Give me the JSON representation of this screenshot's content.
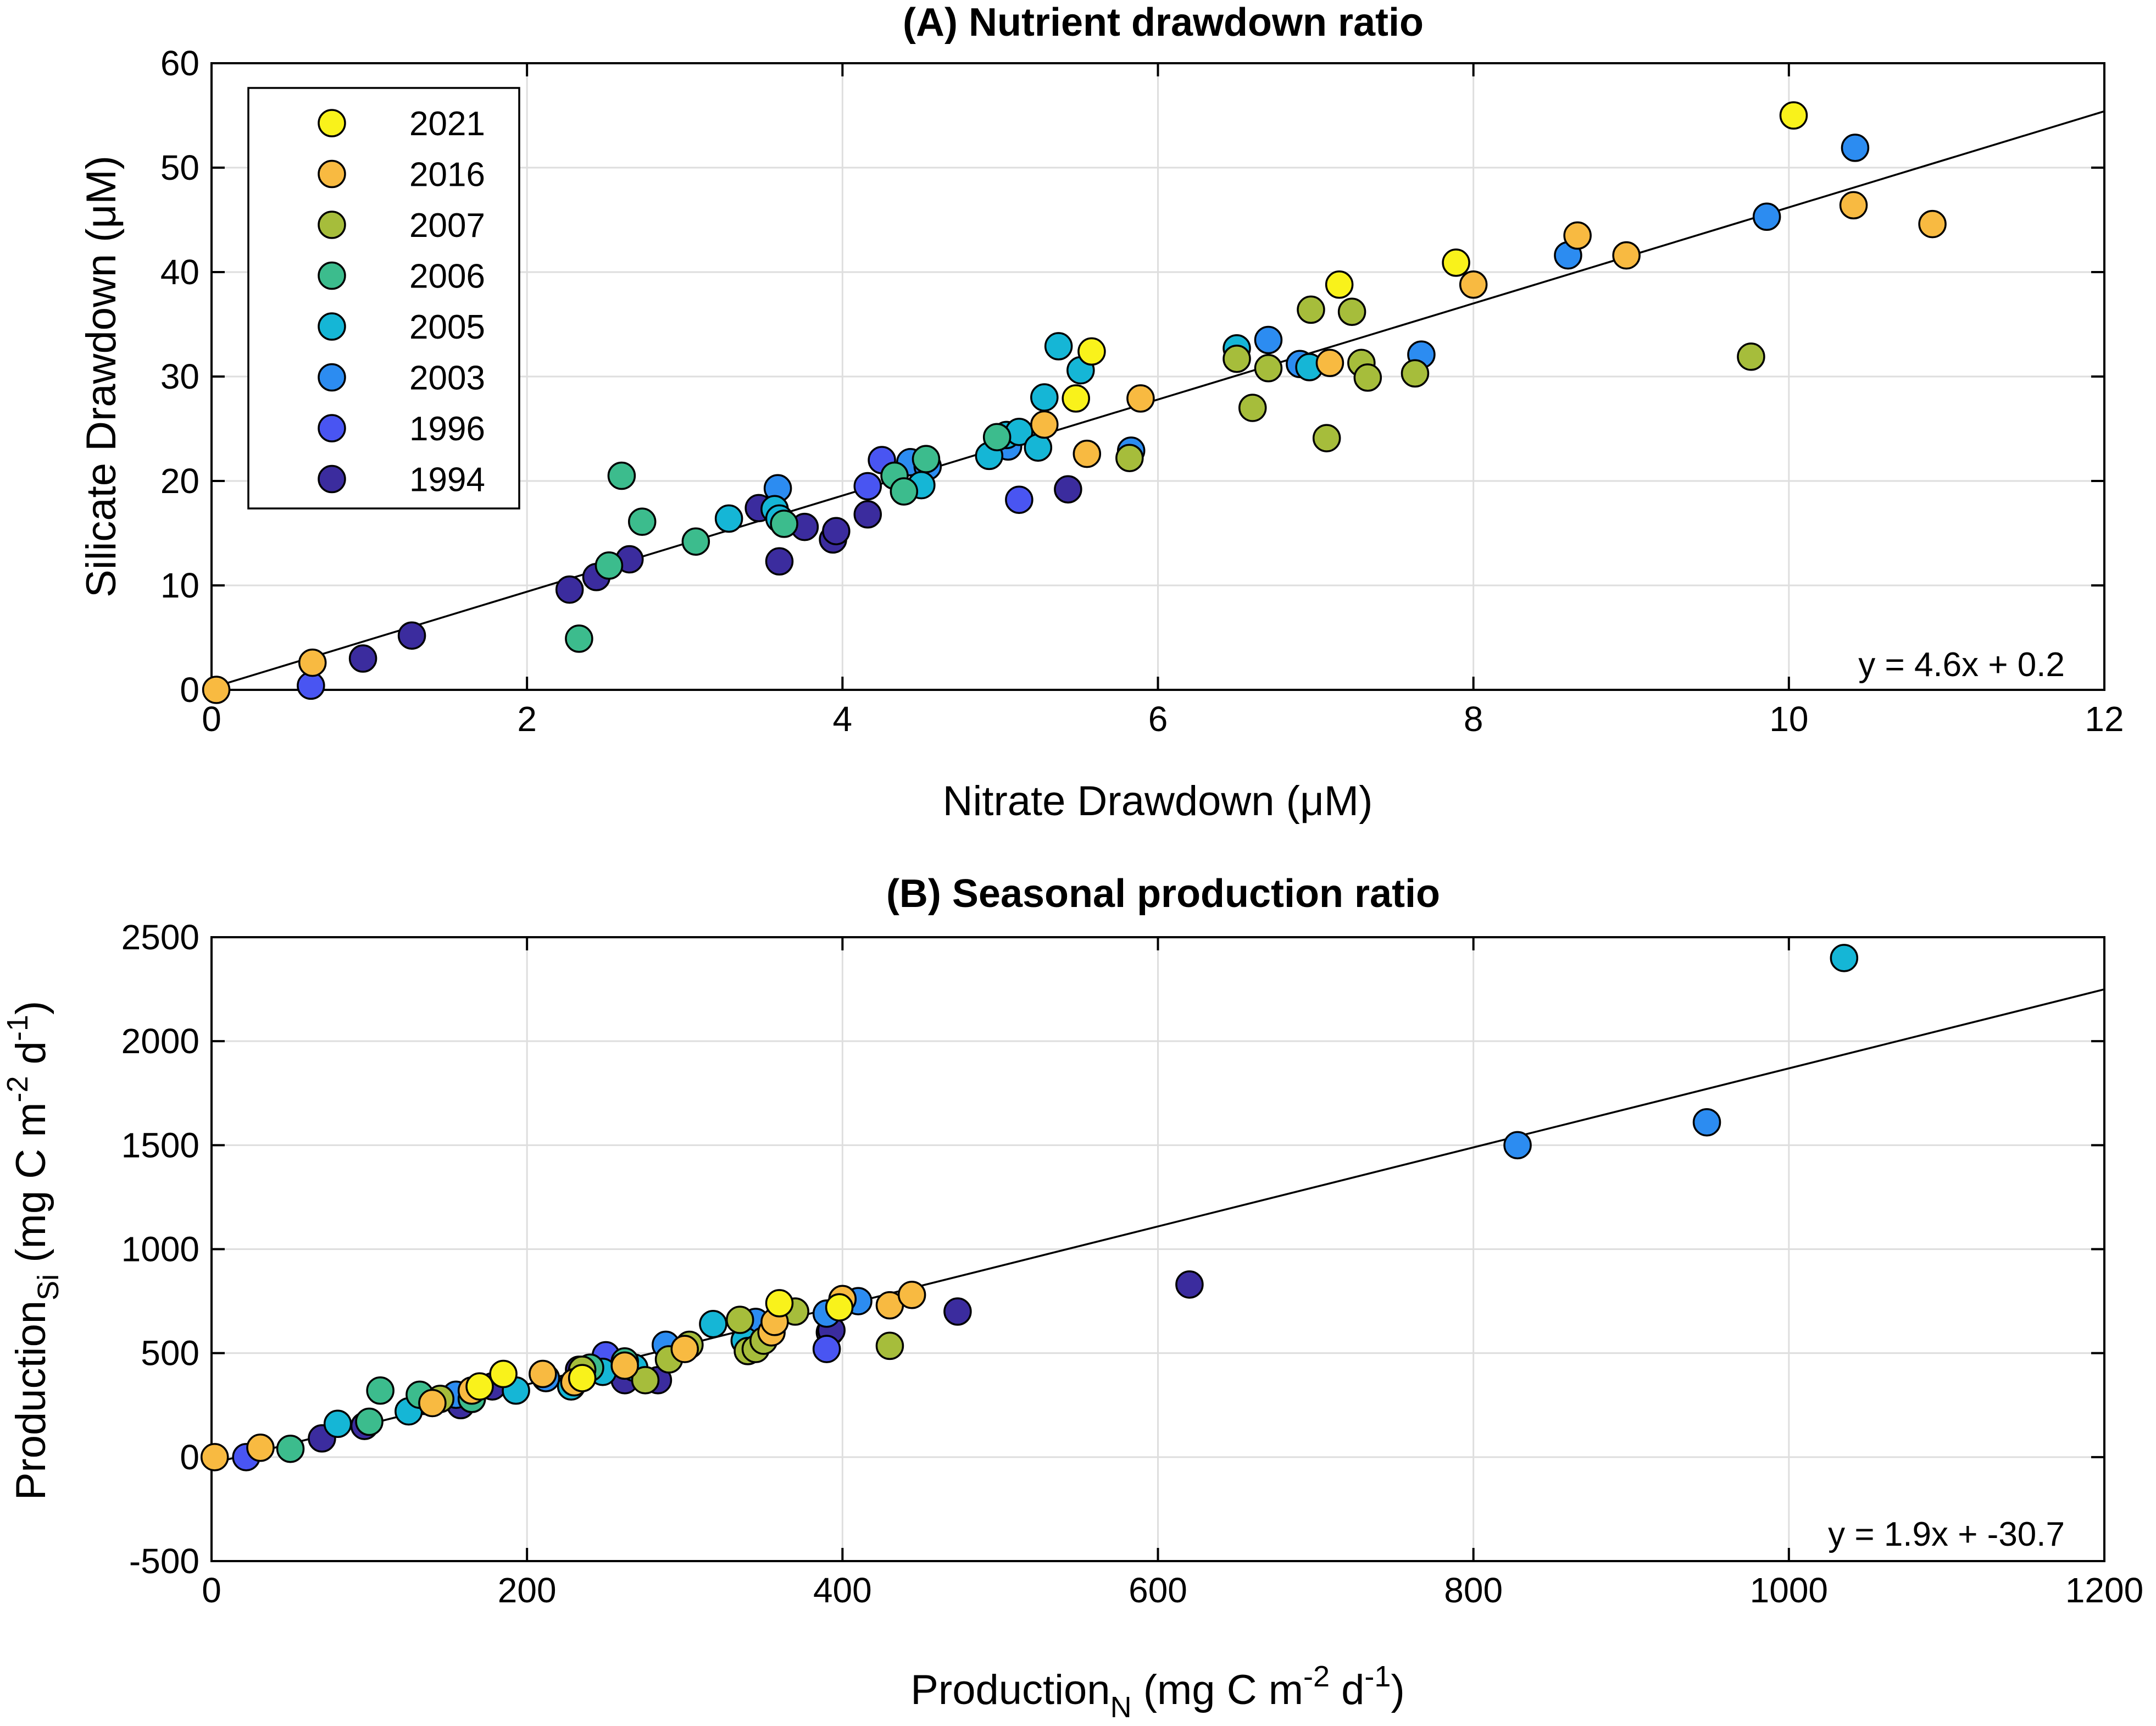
{
  "years": [
    {
      "label": "2021",
      "color": "#f9f21b"
    },
    {
      "label": "2016",
      "color": "#f8ba41"
    },
    {
      "label": "2007",
      "color": "#a6bd3b"
    },
    {
      "label": "2006",
      "color": "#3cbc8d"
    },
    {
      "label": "2005",
      "color": "#15b6d6"
    },
    {
      "label": "2003",
      "color": "#2c8cf1"
    },
    {
      "label": "1996",
      "color": "#4955f2"
    },
    {
      "label": "1994",
      "color": "#3b2c9e"
    }
  ],
  "chart_data": [
    {
      "type": "scatter",
      "title": "(A) Nutrient drawdown ratio",
      "xlabel": "Nitrate Drawdown (μM)",
      "ylabel": "Silicate Drawdown (μM)",
      "xlim": [
        0,
        12
      ],
      "ylim": [
        0,
        60
      ],
      "xticks": [
        0,
        2,
        4,
        6,
        8,
        10,
        12
      ],
      "yticks": [
        0,
        10,
        20,
        30,
        40,
        50,
        60
      ],
      "xtick_labels": [
        "0",
        "2",
        "4",
        "6",
        "8",
        "10",
        "12"
      ],
      "ytick_labels": [
        "0",
        "10",
        "20",
        "30",
        "40",
        "50",
        "60"
      ],
      "legend_position": "top-left",
      "fit": {
        "slope": 4.6,
        "intercept": 0.2,
        "x_range": [
          0,
          12
        ],
        "label": "y = 4.6x + 0.2"
      },
      "series": [
        {
          "name": "2021",
          "x": [
            5.48,
            5.58,
            7.15,
            7.89,
            10.03
          ],
          "y": [
            27.9,
            32.4,
            38.8,
            40.9,
            55.0
          ]
        },
        {
          "name": "2016",
          "x": [
            0.03,
            0.64,
            5.28,
            5.55,
            5.89,
            7.09,
            8.0,
            8.66,
            8.97,
            10.41,
            10.91
          ],
          "y": [
            0.0,
            2.6,
            25.4,
            22.6,
            27.9,
            31.3,
            38.8,
            43.5,
            41.6,
            46.4,
            44.6
          ]
        },
        {
          "name": "2007",
          "x": [
            5.82,
            6.5,
            6.6,
            6.7,
            6.97,
            7.07,
            7.23,
            7.29,
            7.33,
            7.63,
            9.76
          ],
          "y": [
            22.2,
            31.7,
            27.0,
            30.8,
            36.4,
            24.1,
            36.2,
            31.3,
            29.9,
            30.3,
            31.9
          ]
        },
        {
          "name": "2006",
          "x": [
            2.33,
            2.52,
            2.6,
            2.73,
            3.07,
            3.63,
            4.33,
            4.39,
            4.53,
            4.98
          ],
          "y": [
            4.9,
            11.9,
            20.5,
            16.1,
            14.2,
            15.9,
            20.5,
            19.0,
            22.1,
            24.2
          ]
        },
        {
          "name": "2005",
          "x": [
            3.28,
            3.57,
            3.6,
            4.5,
            4.93,
            5.04,
            5.12,
            5.24,
            5.28,
            5.37,
            5.51,
            6.5,
            6.96
          ],
          "y": [
            16.4,
            17.3,
            16.4,
            19.6,
            22.4,
            24.4,
            24.7,
            23.2,
            28.0,
            32.9,
            30.6,
            32.7,
            30.9
          ]
        },
        {
          "name": "2003",
          "x": [
            3.59,
            4.43,
            4.54,
            5.05,
            5.83,
            6.7,
            6.9,
            7.67,
            8.6,
            9.86,
            10.42
          ],
          "y": [
            19.3,
            21.8,
            21.4,
            23.3,
            22.9,
            33.5,
            31.2,
            32.1,
            41.6,
            45.3,
            51.9
          ]
        },
        {
          "name": "1996",
          "x": [
            0.63,
            4.16,
            4.25,
            5.12
          ],
          "y": [
            0.4,
            19.5,
            22.0,
            18.2
          ]
        },
        {
          "name": "1994",
          "x": [
            0.96,
            1.27,
            2.27,
            2.44,
            2.65,
            3.47,
            3.6,
            3.76,
            3.94,
            3.96,
            4.16,
            5.43
          ],
          "y": [
            3.0,
            5.2,
            9.6,
            10.8,
            12.5,
            17.4,
            12.3,
            15.6,
            14.4,
            15.2,
            16.8,
            19.2
          ]
        }
      ]
    },
    {
      "type": "scatter",
      "title": "(B) Seasonal production ratio",
      "xlabel": "Production_N (mg C m^-2 d^-1)",
      "ylabel": "Production_Si (mg C m^-2 d^-1)",
      "xlim": [
        0,
        1200
      ],
      "ylim": [
        -500,
        2500
      ],
      "xticks": [
        0,
        200,
        400,
        600,
        800,
        1000,
        1200
      ],
      "yticks": [
        -500,
        0,
        500,
        1000,
        1500,
        2000,
        2500
      ],
      "xtick_labels": [
        "0",
        "200",
        "400",
        "600",
        "800",
        "1000",
        "1200"
      ],
      "ytick_labels": [
        "-500",
        "0",
        "500",
        "1000",
        "1500",
        "2000",
        "2500"
      ],
      "fit": {
        "slope": 1.9,
        "intercept": -30.7,
        "x_range": [
          0,
          1200
        ],
        "label": "y = 1.9x + -30.7"
      },
      "series": [
        {
          "name": "2021",
          "x": [
            170,
            185,
            235,
            360,
            398
          ],
          "y": [
            340,
            400,
            380,
            740,
            720
          ]
        },
        {
          "name": "2016",
          "x": [
            2,
            31,
            140,
            165,
            210,
            230,
            262,
            300,
            355,
            357,
            400,
            430,
            444
          ],
          "y": [
            0,
            45,
            260,
            320,
            400,
            360,
            440,
            520,
            600,
            650,
            760,
            730,
            780
          ]
        },
        {
          "name": "2007",
          "x": [
            145,
            235,
            275,
            290,
            303,
            335,
            340,
            345,
            350,
            370,
            430
          ],
          "y": [
            280,
            420,
            370,
            470,
            540,
            660,
            510,
            520,
            560,
            700,
            535
          ]
        },
        {
          "name": "2006",
          "x": [
            50,
            100,
            107,
            132,
            165,
            240,
            262
          ],
          "y": [
            40,
            170,
            320,
            300,
            280,
            430,
            460
          ]
        },
        {
          "name": "2005",
          "x": [
            80,
            125,
            165,
            193,
            228,
            248,
            268,
            318,
            338,
            1035
          ],
          "y": [
            160,
            220,
            280,
            320,
            340,
            410,
            430,
            640,
            560,
            2400
          ]
        },
        {
          "name": "2003",
          "x": [
            135,
            155,
            212,
            288,
            345,
            390,
            410,
            828,
            948
          ],
          "y": [
            270,
            300,
            380,
            540,
            650,
            690,
            750,
            1500,
            1610
          ]
        },
        {
          "name": "1996",
          "x": [
            22,
            250,
            390
          ],
          "y": [
            0,
            490,
            520
          ]
        },
        {
          "name": "1994",
          "x": [
            70,
            97,
            158,
            178,
            233,
            262,
            283,
            392,
            393,
            473,
            620
          ],
          "y": [
            90,
            150,
            250,
            340,
            420,
            370,
            370,
            600,
            610,
            700,
            830
          ]
        }
      ]
    }
  ]
}
